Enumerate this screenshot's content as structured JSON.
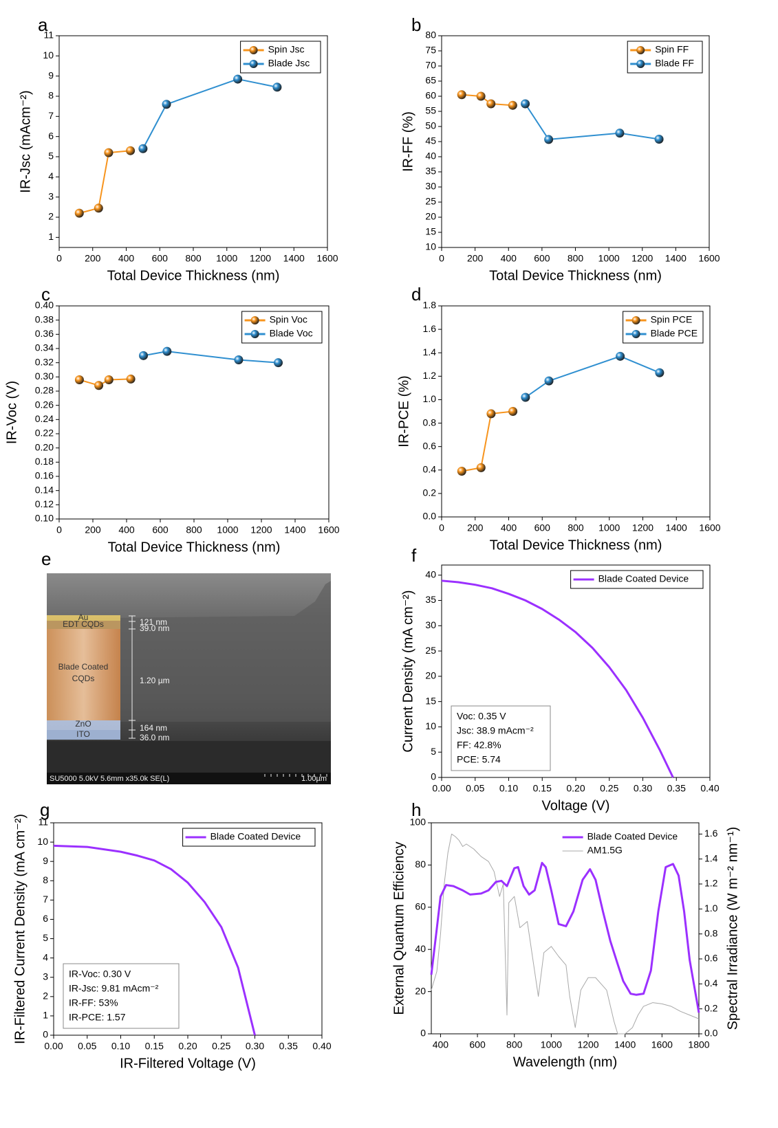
{
  "chart_data": [
    {
      "type": "line",
      "panel_label": "a",
      "x_label": "Total Device Thickness (nm)",
      "y_label": "IR-Jsc (mAcm⁻²)",
      "xlim": [
        0,
        1600
      ],
      "xticks": [
        0,
        200,
        400,
        600,
        800,
        1000,
        1200,
        1400,
        1600
      ],
      "ylim": [
        0.5,
        11
      ],
      "yticks": [
        1,
        2,
        3,
        4,
        5,
        6,
        7,
        8,
        9,
        10,
        11
      ],
      "markers": true,
      "legend": "upper right",
      "series": [
        {
          "name": "Spin Jsc",
          "color": "#f7941d",
          "x": [
            120,
            235,
            295,
            425
          ],
          "values": [
            2.2,
            2.45,
            5.2,
            5.3
          ]
        },
        {
          "name": "Blade Jsc",
          "color": "#2f8fd0",
          "x": [
            500,
            640,
            1065,
            1300
          ],
          "values": [
            5.4,
            7.6,
            8.85,
            8.45
          ]
        }
      ]
    },
    {
      "type": "line",
      "panel_label": "b",
      "x_label": "Total Device Thickness (nm)",
      "y_label": "IR-FF (%)",
      "xlim": [
        0,
        1600
      ],
      "xticks": [
        0,
        200,
        400,
        600,
        800,
        1000,
        1200,
        1400,
        1600
      ],
      "ylim": [
        10,
        80
      ],
      "yticks": [
        10,
        15,
        20,
        25,
        30,
        35,
        40,
        45,
        50,
        55,
        60,
        65,
        70,
        75,
        80
      ],
      "markers": true,
      "legend": "upper right",
      "series": [
        {
          "name": "Spin FF",
          "color": "#f7941d",
          "x": [
            120,
            235,
            295,
            425
          ],
          "values": [
            60.5,
            60,
            57.5,
            57
          ]
        },
        {
          "name": "Blade FF",
          "color": "#2f8fd0",
          "x": [
            500,
            640,
            1065,
            1300
          ],
          "values": [
            57.5,
            45.7,
            47.8,
            45.8
          ]
        }
      ]
    },
    {
      "type": "line",
      "panel_label": "c",
      "x_label": "Total Device Thickness (nm)",
      "y_label": "IR-Voc (V)",
      "xlim": [
        0,
        1600
      ],
      "xticks": [
        0,
        200,
        400,
        600,
        800,
        1000,
        1200,
        1400,
        1600
      ],
      "ylim": [
        0.1,
        0.4
      ],
      "yticks": [
        {
          "value": 0.1,
          "label": "0.10"
        },
        0.12,
        0.14,
        0.16,
        0.18,
        {
          "value": 0.2,
          "label": "0.20"
        },
        0.22,
        0.24,
        0.26,
        0.28,
        {
          "value": 0.3,
          "label": "0.30"
        },
        0.32,
        0.34,
        0.36,
        0.38,
        {
          "value": 0.4,
          "label": "0.40"
        }
      ],
      "markers": true,
      "legend": "upper right",
      "series": [
        {
          "name": "Spin Voc",
          "color": "#f7941d",
          "x": [
            120,
            235,
            295,
            425
          ],
          "values": [
            0.296,
            0.288,
            0.296,
            0.297
          ]
        },
        {
          "name": "Blade Voc",
          "color": "#2f8fd0",
          "x": [
            500,
            640,
            1065,
            1300
          ],
          "values": [
            0.33,
            0.336,
            0.324,
            0.32
          ]
        }
      ]
    },
    {
      "type": "line",
      "panel_label": "d",
      "x_label": "Total Device Thickness (nm)",
      "y_label": "IR-PCE (%)",
      "xlim": [
        0,
        1600
      ],
      "xticks": [
        0,
        200,
        400,
        600,
        800,
        1000,
        1200,
        1400,
        1600
      ],
      "ylim": [
        0,
        1.8
      ],
      "yticks": [
        {
          "value": 0,
          "label": "0.0"
        },
        0.2,
        0.4,
        0.6,
        0.8,
        {
          "value": 1,
          "label": "1.0"
        },
        1.2,
        1.4,
        1.6,
        1.8
      ],
      "markers": true,
      "legend": "upper right",
      "series": [
        {
          "name": "Spin PCE",
          "color": "#f7941d",
          "x": [
            120,
            235,
            295,
            425
          ],
          "values": [
            0.39,
            0.42,
            0.88,
            0.9
          ]
        },
        {
          "name": "Blade PCE",
          "color": "#2f8fd0",
          "x": [
            500,
            640,
            1065,
            1300
          ],
          "values": [
            1.02,
            1.16,
            1.37,
            1.23
          ]
        }
      ]
    },
    {
      "type": "image",
      "panel_label": "e",
      "layers": [
        "Au",
        "EDT CQDs",
        "Blade Coated",
        "CQDs",
        "ZnO",
        "ITO"
      ],
      "measurements": [
        "121 nm",
        "39.0 nm",
        "1.20 µm",
        "164 nm",
        "36.0 nm"
      ],
      "footer": "SU5000 5.0kV 5.6mm x35.0k SE(L)",
      "scale_bar": "1.00µm"
    },
    {
      "type": "line",
      "panel_label": "f",
      "x_label": "Voltage (V)",
      "y_label": "Current Density (mA cm⁻²)",
      "xlim": [
        0,
        0.4
      ],
      "xticks": [
        {
          "value": 0,
          "label": "0.00"
        },
        0.05,
        {
          "value": 0.1,
          "label": "0.10"
        },
        0.15,
        {
          "value": 0.2,
          "label": "0.20"
        },
        0.25,
        {
          "value": 0.3,
          "label": "0.30"
        },
        0.35,
        {
          "value": 0.4,
          "label": "0.40"
        }
      ],
      "ylim": [
        0,
        42
      ],
      "yticks": [
        0,
        5,
        10,
        15,
        20,
        25,
        30,
        35,
        40
      ],
      "markers": false,
      "legend": "upper right",
      "annotation": [
        "Voc: 0.35 V",
        "Jsc: 38.9 mAcm⁻²",
        "FF: 42.8%",
        "PCE: 5.74"
      ],
      "series": [
        {
          "name": "Blade Coated Device",
          "color": "#9b30ff",
          "x": [
            0,
            0.025,
            0.05,
            0.075,
            0.1,
            0.125,
            0.15,
            0.175,
            0.2,
            0.225,
            0.25,
            0.275,
            0.3,
            0.325,
            0.345
          ],
          "values": [
            38.9,
            38.6,
            38.1,
            37.4,
            36.3,
            35.0,
            33.3,
            31.2,
            28.7,
            25.6,
            21.8,
            17.3,
            11.8,
            5.5,
            0
          ]
        }
      ]
    },
    {
      "type": "line",
      "panel_label": "g",
      "x_label": "IR-Filtered Voltage (V)",
      "y_label": "IR-Filtered Current Density (mA cm⁻²)",
      "xlim": [
        0,
        0.4
      ],
      "xticks": [
        {
          "value": 0,
          "label": "0.00"
        },
        0.05,
        {
          "value": 0.1,
          "label": "0.10"
        },
        0.15,
        {
          "value": 0.2,
          "label": "0.20"
        },
        0.25,
        {
          "value": 0.3,
          "label": "0.30"
        },
        0.35,
        {
          "value": 0.4,
          "label": "0.40"
        }
      ],
      "ylim": [
        0,
        11
      ],
      "yticks": [
        0,
        1,
        2,
        3,
        4,
        5,
        6,
        7,
        8,
        9,
        10,
        11
      ],
      "markers": false,
      "legend": "upper right",
      "annotation": [
        "IR-Voc: 0.30 V",
        "IR-Jsc: 9.81 mAcm⁻²",
        "IR-FF: 53%",
        "IR-PCE: 1.57"
      ],
      "series": [
        {
          "name": "Blade Coated Device",
          "color": "#9b30ff",
          "x": [
            0,
            0.05,
            0.1,
            0.125,
            0.15,
            0.175,
            0.2,
            0.225,
            0.25,
            0.275,
            0.3
          ],
          "values": [
            9.81,
            9.75,
            9.5,
            9.3,
            9.05,
            8.6,
            7.9,
            6.9,
            5.6,
            3.5,
            0
          ]
        }
      ]
    },
    {
      "type": "line",
      "panel_label": "h",
      "x_label": "Wavelength (nm)",
      "y_label": "External Quantum Efficiency",
      "y2_label": "Spectral Irradiance (W m⁻² nm⁻¹)",
      "xlim": [
        350,
        1800
      ],
      "xticks": [
        400,
        600,
        800,
        1000,
        1200,
        1400,
        1600,
        1800
      ],
      "ylim": [
        0,
        100
      ],
      "yticks": [
        0,
        20,
        40,
        60,
        80,
        100
      ],
      "y2lim": [
        0,
        1.69
      ],
      "y2ticks": [
        {
          "value": 0,
          "label": "0.0"
        },
        0.2,
        0.4,
        0.6,
        0.8,
        {
          "value": 1,
          "label": "1.0"
        },
        1.2,
        1.4,
        1.6
      ],
      "markers": false,
      "legend": "upper right",
      "legend_frame": false,
      "series": [
        {
          "name": "Blade Coated Device",
          "color": "#9b30ff",
          "x": [
            350,
            380,
            400,
            430,
            470,
            520,
            560,
            620,
            660,
            700,
            730,
            760,
            800,
            820,
            850,
            880,
            910,
            950,
            970,
            1000,
            1040,
            1080,
            1120,
            1170,
            1210,
            1240,
            1280,
            1320,
            1360,
            1390,
            1430,
            1460,
            1500,
            1540,
            1580,
            1620,
            1660,
            1690,
            1720,
            1750,
            1780,
            1800
          ],
          "values": [
            28,
            50,
            65,
            70.5,
            70,
            68,
            66,
            66.5,
            68,
            72,
            72.5,
            70,
            78.5,
            79,
            70,
            66,
            68,
            81,
            79,
            68,
            52,
            51,
            58,
            73,
            78,
            73,
            58,
            44,
            33,
            25,
            19,
            18.5,
            19,
            30,
            58,
            79,
            80.5,
            75,
            58,
            35,
            20,
            10
          ]
        },
        {
          "name": "AM1.5G",
          "color": "#a8a8a8",
          "axis": "y2",
          "x": [
            350,
            380,
            400,
            420,
            440,
            460,
            480,
            500,
            520,
            540,
            560,
            580,
            600,
            620,
            660,
            690,
            720,
            740,
            760,
            770,
            800,
            830,
            870,
            900,
            930,
            960,
            1000,
            1040,
            1080,
            1100,
            1130,
            1160,
            1200,
            1240,
            1270,
            1300,
            1340,
            1360,
            1400,
            1440,
            1470,
            1500,
            1550,
            1600,
            1650,
            1700,
            1750,
            1800
          ],
          "values": [
            0.35,
            0.5,
            0.8,
            1.2,
            1.45,
            1.6,
            1.58,
            1.55,
            1.5,
            1.52,
            1.5,
            1.48,
            1.45,
            1.42,
            1.38,
            1.3,
            1.1,
            1.2,
            0.15,
            1.05,
            1.1,
            0.85,
            0.9,
            0.6,
            0.3,
            0.65,
            0.7,
            0.62,
            0.55,
            0.3,
            0.05,
            0.35,
            0.45,
            0.45,
            0.4,
            0.35,
            0.1,
            0,
            0,
            0.05,
            0.15,
            0.22,
            0.25,
            0.24,
            0.22,
            0.18,
            0.15,
            0.12
          ]
        }
      ]
    }
  ]
}
